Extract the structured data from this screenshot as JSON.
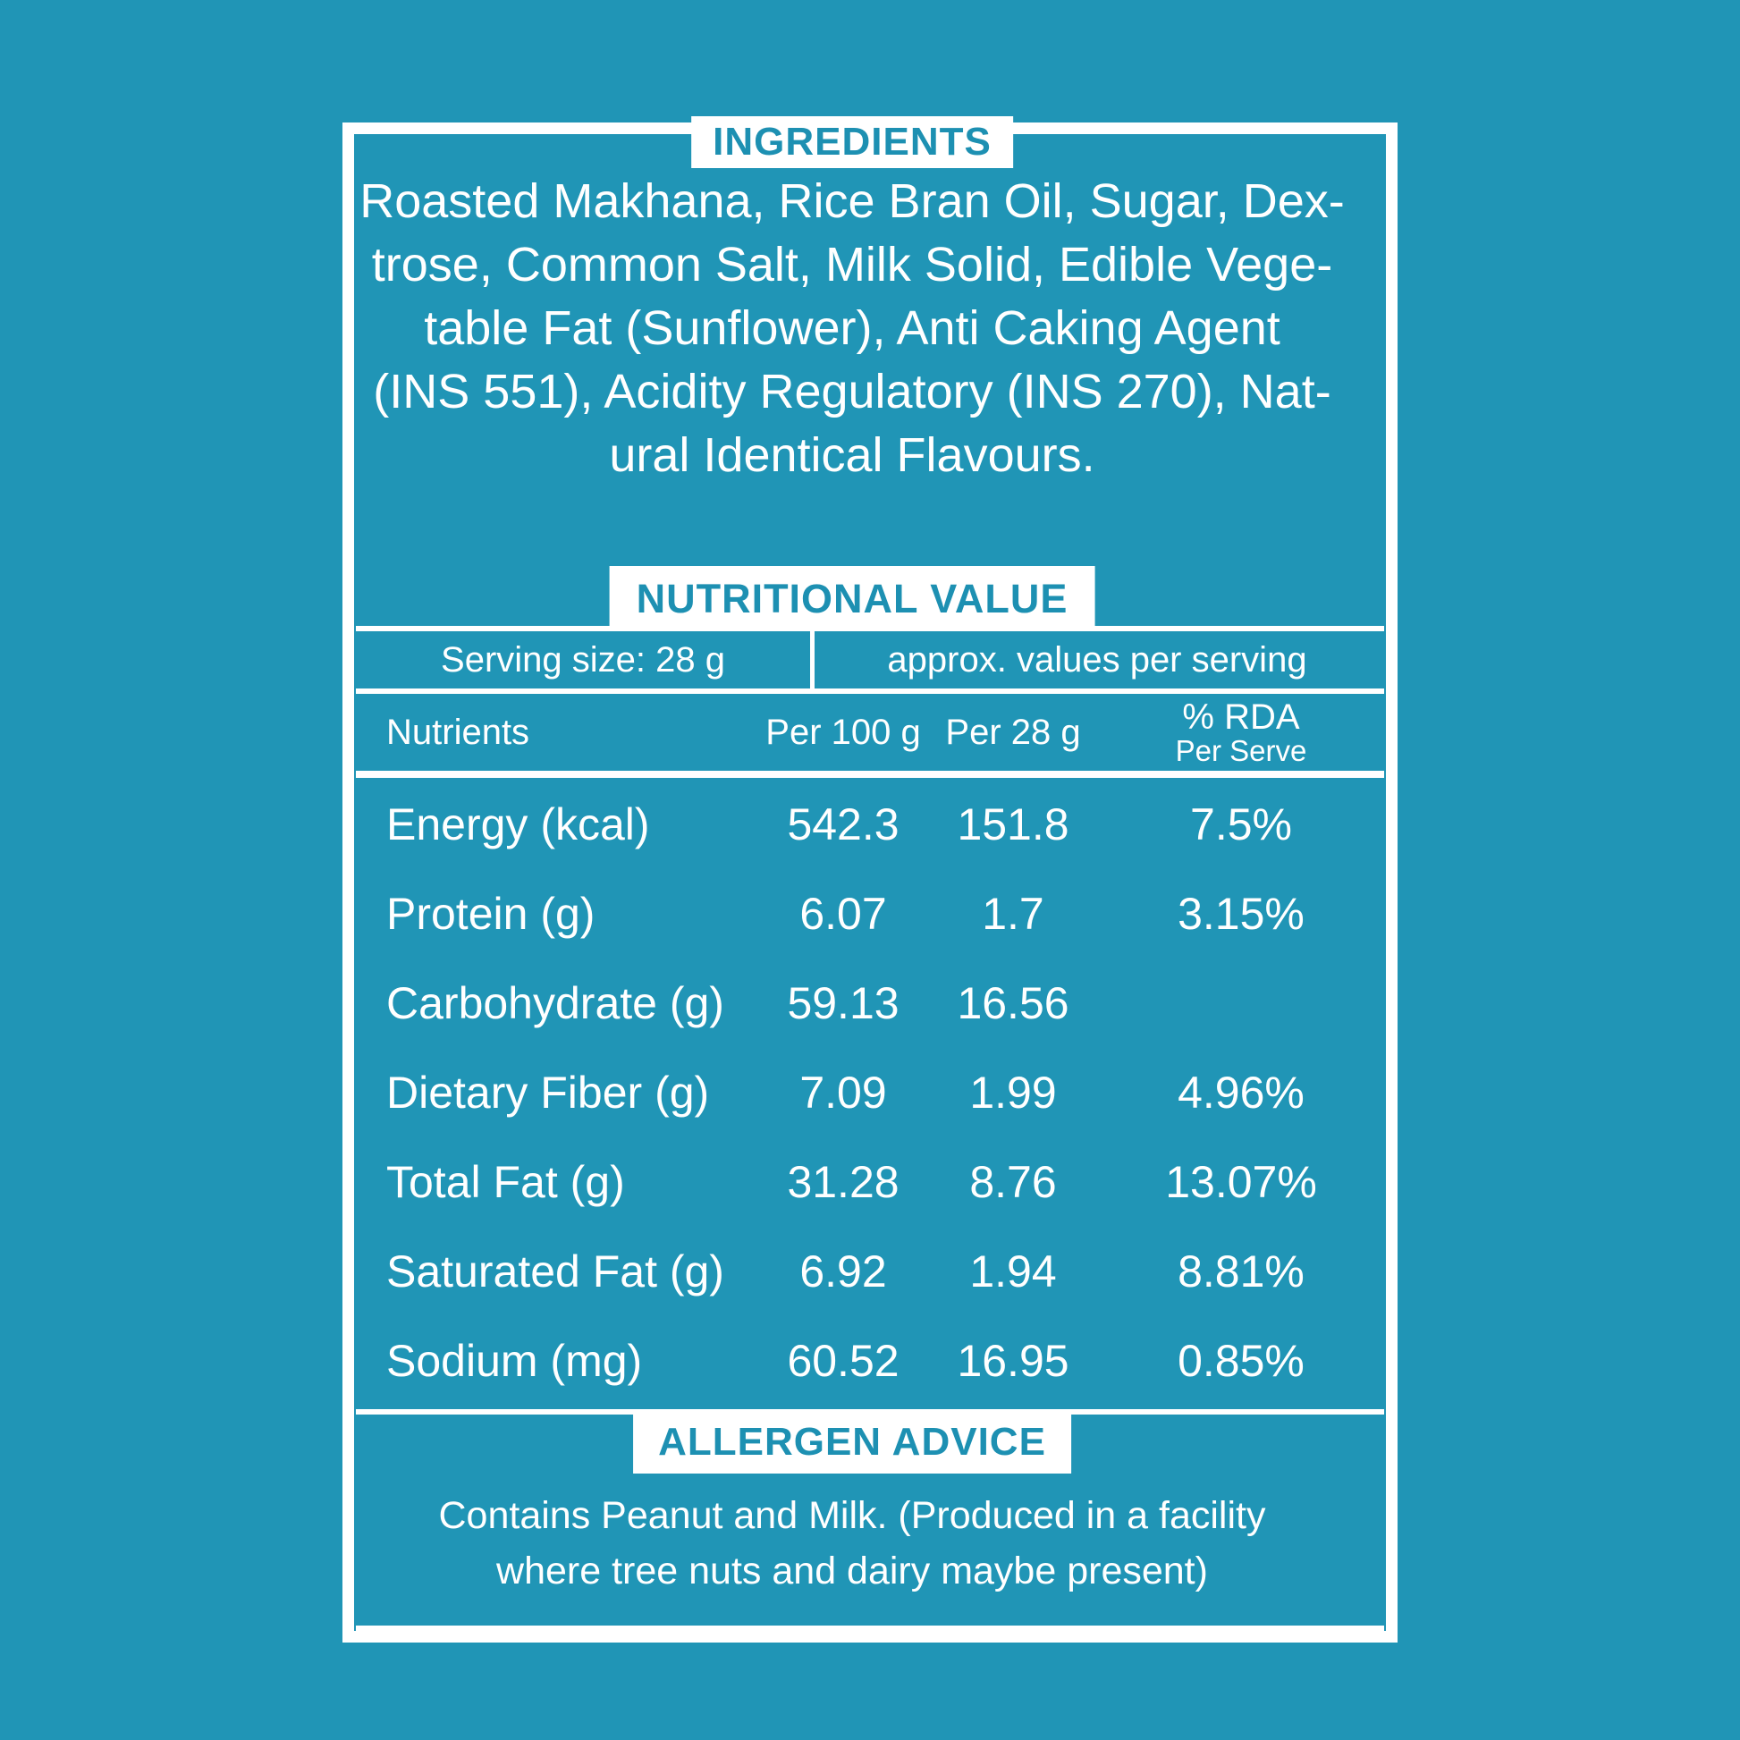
{
  "colors": {
    "background": "#2095B6",
    "header_text": "#1D90B2",
    "body_text": "#FFFFFF",
    "border": "#FFFFFF"
  },
  "ingredients": {
    "title": "INGREDIENTS",
    "lines": [
      "Roasted Makhana, Rice Bran Oil, Sugar, Dex-",
      "trose, Common Salt, Milk Solid, Edible Vege-",
      "table Fat (Sunflower), Anti Caking Agent",
      "(INS 551), Acidity Regulatory (INS 270), Nat-",
      "ural Identical Flavours."
    ]
  },
  "nutrition": {
    "title": "NUTRITIONAL VALUE",
    "serving_size": "Serving size: 28 g",
    "approx_values": "approx. values per serving",
    "columns": {
      "nutrients": "Nutrients",
      "per_100g": "Per 100 g",
      "per_28g": "Per 28 g",
      "rda_top": "% RDA",
      "rda_bottom": "Per Serve"
    },
    "rows": [
      {
        "label": "Energy (kcal)",
        "per_100g": "542.3",
        "per_28g": "151.8",
        "rda": "7.5%"
      },
      {
        "label": "Protein (g)",
        "per_100g": "6.07",
        "per_28g": "1.7",
        "rda": "3.15%"
      },
      {
        "label": "Carbohydrate (g)",
        "per_100g": "59.13",
        "per_28g": "16.56",
        "rda": ""
      },
      {
        "label": "Dietary Fiber (g)",
        "per_100g": "7.09",
        "per_28g": "1.99",
        "rda": "4.96%"
      },
      {
        "label": "Total Fat (g)",
        "per_100g": "31.28",
        "per_28g": "8.76",
        "rda": "13.07%"
      },
      {
        "label": "Saturated Fat (g)",
        "per_100g": "6.92",
        "per_28g": "1.94",
        "rda": "8.81%"
      },
      {
        "label": "Sodium (mg)",
        "per_100g": "60.52",
        "per_28g": "16.95",
        "rda": "0.85%"
      }
    ]
  },
  "allergen": {
    "title": "ALLERGEN ADVICE",
    "lines": [
      "Contains Peanut and Milk. (Produced in a facility",
      "where tree nuts and dairy maybe present)"
    ]
  }
}
